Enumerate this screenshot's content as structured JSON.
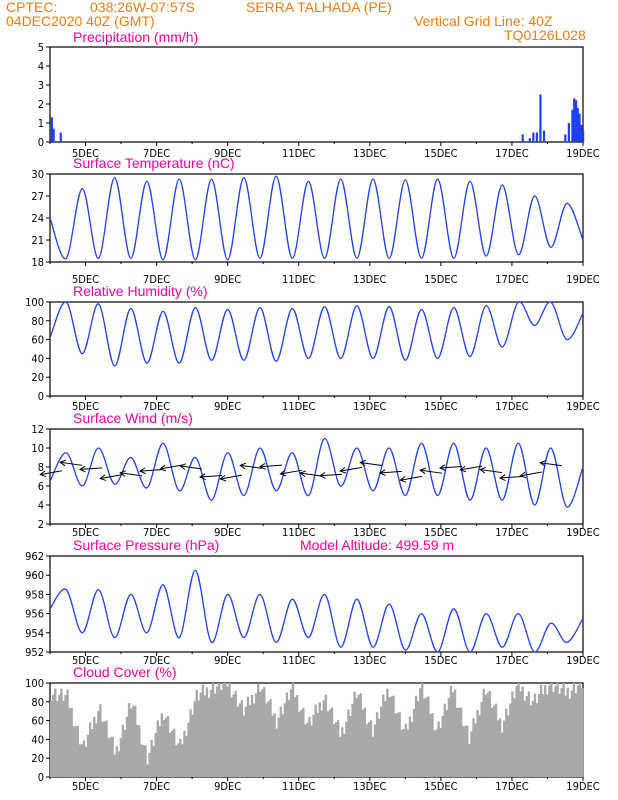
{
  "header": {
    "source": "CPTEC:",
    "coords": "038:26W-07:57S",
    "station": "SERRA TALHADA (PE)",
    "run": "04DEC2020 40Z (GMT)",
    "grid_note": "Vertical Grid Line: 40Z",
    "code": "TQ0126L028"
  },
  "colors": {
    "header": "#f07c18",
    "title": "#ff00a0",
    "line": "#1f3fff",
    "bar": "#1f3fff",
    "cloud": "#a8a8a8",
    "arrow": "#000000"
  },
  "chart_data": [
    {
      "type": "bar",
      "title": "Precipitation (mm/h)",
      "ylim": [
        0,
        5
      ],
      "yticks": [
        "0",
        "1",
        "2",
        "3",
        "4",
        "5"
      ],
      "x_labels": [
        "5DEC",
        "7DEC",
        "9DEC",
        "11DEC",
        "13DEC",
        "15DEC",
        "17DEC",
        "19DEC"
      ],
      "x_day_range": [
        4.0,
        19.0
      ],
      "bars": [
        [
          4.05,
          1.3
        ],
        [
          4.1,
          0.7
        ],
        [
          4.3,
          0.5
        ],
        [
          17.3,
          0.4
        ],
        [
          17.5,
          0.2
        ],
        [
          17.6,
          0.5
        ],
        [
          17.7,
          0.5
        ],
        [
          17.8,
          2.5
        ],
        [
          17.9,
          0.6
        ],
        [
          18.5,
          0.4
        ],
        [
          18.6,
          1.0
        ],
        [
          18.7,
          1.7
        ],
        [
          18.75,
          2.3
        ],
        [
          18.8,
          2.2
        ],
        [
          18.85,
          1.8
        ],
        [
          18.9,
          1.5
        ],
        [
          18.95,
          0.9
        ],
        [
          19.0,
          0.6
        ]
      ]
    },
    {
      "type": "line",
      "title": "Surface Temperature (nC)",
      "ylim": [
        18,
        30
      ],
      "yticks": [
        "18",
        "21",
        "24",
        "27",
        "30"
      ],
      "x_labels": [
        "5DEC",
        "7DEC",
        "9DEC",
        "11DEC",
        "13DEC",
        "15DEC",
        "17DEC",
        "19DEC"
      ],
      "x_day_range": [
        4.0,
        19.0
      ],
      "series": [
        {
          "values": [
            24.0,
            18.5,
            28.0,
            18.5,
            29.5,
            18.5,
            29.0,
            18.3,
            29.3,
            18.3,
            29.3,
            18.3,
            29.5,
            18.5,
            29.7,
            18.5,
            29.0,
            18.5,
            29.3,
            18.5,
            29.3,
            18.5,
            29.2,
            18.5,
            29.3,
            18.5,
            29.0,
            18.8,
            28.5,
            19.0,
            27.0,
            20.0,
            26.0,
            21.0
          ]
        }
      ]
    },
    {
      "type": "line",
      "title": "Relative Humidity (%)",
      "ylim": [
        0,
        100
      ],
      "yticks": [
        "0",
        "20",
        "40",
        "60",
        "80",
        "100"
      ],
      "x_labels": [
        "5DEC",
        "7DEC",
        "9DEC",
        "11DEC",
        "13DEC",
        "15DEC",
        "17DEC",
        "19DEC"
      ],
      "x_day_range": [
        4.0,
        19.0
      ],
      "series": [
        {
          "values": [
            62,
            100,
            45,
            98,
            32,
            93,
            35,
            90,
            35,
            94,
            38,
            92,
            38,
            94,
            37,
            93,
            40,
            95,
            40,
            96,
            40,
            95,
            38,
            92,
            40,
            94,
            42,
            96,
            52,
            100,
            75,
            100,
            60,
            88
          ]
        }
      ]
    },
    {
      "type": "line",
      "title": "Surface Wind (m/s)",
      "ylim": [
        2,
        12
      ],
      "yticks": [
        "2",
        "4",
        "6",
        "8",
        "10",
        "12"
      ],
      "x_labels": [
        "5DEC",
        "7DEC",
        "9DEC",
        "11DEC",
        "13DEC",
        "15DEC",
        "17DEC",
        "19DEC"
      ],
      "x_day_range": [
        4.0,
        19.0
      ],
      "series": [
        {
          "values": [
            6.5,
            9.5,
            6.0,
            10.0,
            6.2,
            9.0,
            5.8,
            10.5,
            5.5,
            9.0,
            4.5,
            9.5,
            5.0,
            10.0,
            5.5,
            9.5,
            5.0,
            11.0,
            6.0,
            10.0,
            5.5,
            10.0,
            5.0,
            10.5,
            5.0,
            10.5,
            4.5,
            10.0,
            4.5,
            10.5,
            4.0,
            10.0,
            3.8,
            8.0
          ]
        }
      ]
    },
    {
      "type": "line",
      "title": "Surface Pressure (hPa)",
      "annotation": "Model Altitude: 499.59 m",
      "ylim": [
        952,
        962
      ],
      "yticks": [
        "952",
        "954",
        "956",
        "958",
        "960",
        "962"
      ],
      "x_labels": [
        "5DEC",
        "7DEC",
        "9DEC",
        "11DEC",
        "13DEC",
        "15DEC",
        "17DEC",
        "19DEC"
      ],
      "x_day_range": [
        4.0,
        19.0
      ],
      "series": [
        {
          "values": [
            956.5,
            958.5,
            954.0,
            958.5,
            953.5,
            958.0,
            954.0,
            959.0,
            953.5,
            960.5,
            953.0,
            958.0,
            953.5,
            958.0,
            953.0,
            957.5,
            953.5,
            958.0,
            952.5,
            957.5,
            952.5,
            957.0,
            952.2,
            956.0,
            952.0,
            956.5,
            952.0,
            956.0,
            952.5,
            956.0,
            952.0,
            955.0,
            953.0,
            955.5
          ]
        }
      ]
    },
    {
      "type": "area",
      "title": "Cloud Cover (%)",
      "ylim": [
        0,
        100
      ],
      "yticks": [
        "0",
        "20",
        "40",
        "60",
        "80",
        "100"
      ],
      "x_labels": [
        "5DEC",
        "7DEC",
        "9DEC",
        "11DEC",
        "13DEC",
        "15DEC",
        "17DEC",
        "19DEC"
      ],
      "x_day_range": [
        4.0,
        19.0
      ],
      "series": [
        {
          "values": [
            90,
            85,
            30,
            75,
            25,
            80,
            20,
            70,
            30,
            85,
            95,
            100,
            70,
            98,
            60,
            95,
            55,
            85,
            45,
            90,
            50,
            95,
            45,
            98,
            50,
            95,
            40,
            95,
            55,
            98,
            80,
            100,
            90,
            100
          ]
        }
      ]
    }
  ]
}
